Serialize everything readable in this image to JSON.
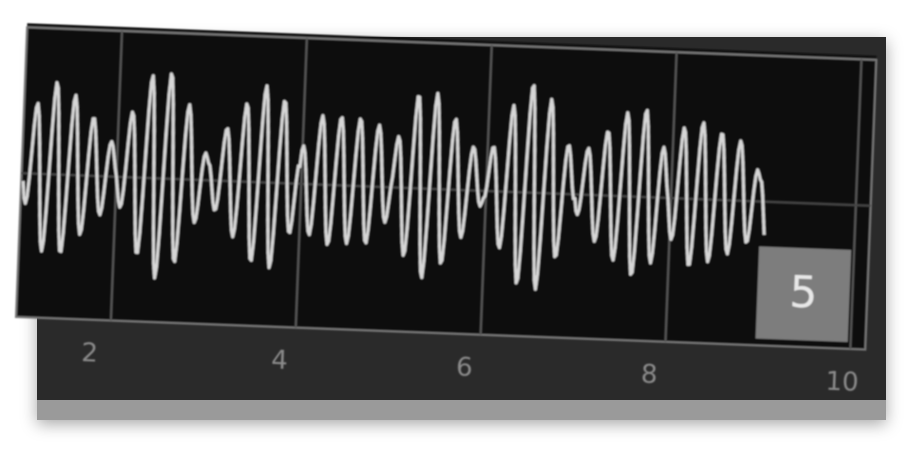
{
  "axis_labels": [
    "2",
    "4",
    "6",
    "8",
    "10"
  ],
  "badge": "5"
}
